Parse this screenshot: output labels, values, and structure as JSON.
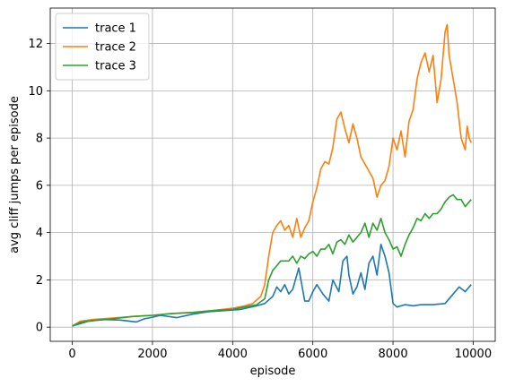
{
  "chart_data": {
    "type": "line",
    "xlabel": "episode",
    "ylabel": "avg cliff jumps per episode",
    "xlim": [
      -550,
      10550
    ],
    "ylim": [
      -0.6,
      13.5
    ],
    "xticks": [
      0,
      2000,
      4000,
      6000,
      8000,
      10000
    ],
    "yticks": [
      0,
      2,
      4,
      6,
      8,
      10,
      12
    ],
    "grid": true,
    "legend_position": "top-left",
    "series": [
      {
        "name": "trace 1",
        "color": "#1f77b4",
        "points": [
          [
            0,
            0.05
          ],
          [
            200,
            0.15
          ],
          [
            400,
            0.25
          ],
          [
            800,
            0.32
          ],
          [
            1200,
            0.3
          ],
          [
            1600,
            0.22
          ],
          [
            1800,
            0.35
          ],
          [
            2000,
            0.42
          ],
          [
            2200,
            0.5
          ],
          [
            2600,
            0.4
          ],
          [
            3000,
            0.55
          ],
          [
            3400,
            0.65
          ],
          [
            3800,
            0.7
          ],
          [
            4200,
            0.75
          ],
          [
            4600,
            0.9
          ],
          [
            4800,
            1.0
          ],
          [
            5000,
            1.3
          ],
          [
            5100,
            1.7
          ],
          [
            5200,
            1.5
          ],
          [
            5300,
            1.8
          ],
          [
            5400,
            1.4
          ],
          [
            5500,
            1.6
          ],
          [
            5650,
            2.5
          ],
          [
            5800,
            1.1
          ],
          [
            5900,
            1.1
          ],
          [
            6000,
            1.5
          ],
          [
            6100,
            1.8
          ],
          [
            6250,
            1.4
          ],
          [
            6400,
            1.1
          ],
          [
            6500,
            2.0
          ],
          [
            6650,
            1.5
          ],
          [
            6750,
            2.8
          ],
          [
            6850,
            3.0
          ],
          [
            6900,
            2.2
          ],
          [
            7000,
            1.4
          ],
          [
            7100,
            1.7
          ],
          [
            7200,
            2.3
          ],
          [
            7300,
            1.6
          ],
          [
            7400,
            2.7
          ],
          [
            7500,
            3.0
          ],
          [
            7600,
            2.2
          ],
          [
            7700,
            3.5
          ],
          [
            7800,
            3.0
          ],
          [
            7900,
            2.3
          ],
          [
            8000,
            1.0
          ],
          [
            8100,
            0.85
          ],
          [
            8300,
            0.95
          ],
          [
            8500,
            0.9
          ],
          [
            8700,
            0.95
          ],
          [
            9000,
            0.95
          ],
          [
            9300,
            1.0
          ],
          [
            9500,
            1.4
          ],
          [
            9650,
            1.7
          ],
          [
            9800,
            1.5
          ],
          [
            9950,
            1.8
          ]
        ]
      },
      {
        "name": "trace 2",
        "color": "#ff7f0e",
        "points": [
          [
            0,
            0.05
          ],
          [
            200,
            0.25
          ],
          [
            500,
            0.32
          ],
          [
            1000,
            0.38
          ],
          [
            1500,
            0.45
          ],
          [
            2000,
            0.5
          ],
          [
            2500,
            0.58
          ],
          [
            3000,
            0.62
          ],
          [
            3500,
            0.7
          ],
          [
            4000,
            0.8
          ],
          [
            4300,
            0.9
          ],
          [
            4500,
            1.0
          ],
          [
            4700,
            1.3
          ],
          [
            4800,
            1.8
          ],
          [
            4900,
            3.0
          ],
          [
            5000,
            4.0
          ],
          [
            5100,
            4.3
          ],
          [
            5200,
            4.5
          ],
          [
            5300,
            4.1
          ],
          [
            5400,
            4.3
          ],
          [
            5500,
            3.8
          ],
          [
            5600,
            4.6
          ],
          [
            5700,
            3.8
          ],
          [
            5800,
            4.2
          ],
          [
            5900,
            4.5
          ],
          [
            6000,
            5.3
          ],
          [
            6100,
            5.9
          ],
          [
            6200,
            6.7
          ],
          [
            6300,
            7.0
          ],
          [
            6400,
            6.9
          ],
          [
            6500,
            7.6
          ],
          [
            6600,
            8.8
          ],
          [
            6700,
            9.1
          ],
          [
            6800,
            8.4
          ],
          [
            6900,
            7.8
          ],
          [
            7000,
            8.6
          ],
          [
            7100,
            8.0
          ],
          [
            7200,
            7.2
          ],
          [
            7300,
            6.9
          ],
          [
            7400,
            6.6
          ],
          [
            7500,
            6.3
          ],
          [
            7600,
            5.5
          ],
          [
            7700,
            6.0
          ],
          [
            7800,
            6.2
          ],
          [
            7900,
            6.8
          ],
          [
            8000,
            8.0
          ],
          [
            8100,
            7.5
          ],
          [
            8200,
            8.3
          ],
          [
            8300,
            7.2
          ],
          [
            8400,
            8.7
          ],
          [
            8500,
            9.2
          ],
          [
            8600,
            10.5
          ],
          [
            8700,
            11.2
          ],
          [
            8800,
            11.6
          ],
          [
            8900,
            10.8
          ],
          [
            9000,
            11.5
          ],
          [
            9100,
            9.5
          ],
          [
            9200,
            10.5
          ],
          [
            9300,
            12.5
          ],
          [
            9350,
            12.8
          ],
          [
            9400,
            11.5
          ],
          [
            9500,
            10.5
          ],
          [
            9600,
            9.5
          ],
          [
            9700,
            8.0
          ],
          [
            9800,
            7.5
          ],
          [
            9850,
            8.5
          ],
          [
            9900,
            8.0
          ],
          [
            9950,
            7.8
          ]
        ]
      },
      {
        "name": "trace 3",
        "color": "#2ca02c",
        "points": [
          [
            0,
            0.05
          ],
          [
            200,
            0.2
          ],
          [
            500,
            0.28
          ],
          [
            1000,
            0.35
          ],
          [
            1500,
            0.45
          ],
          [
            2000,
            0.5
          ],
          [
            2500,
            0.58
          ],
          [
            3000,
            0.62
          ],
          [
            3500,
            0.7
          ],
          [
            4000,
            0.75
          ],
          [
            4300,
            0.85
          ],
          [
            4600,
            0.95
          ],
          [
            4800,
            1.2
          ],
          [
            4900,
            2.0
          ],
          [
            5000,
            2.4
          ],
          [
            5100,
            2.6
          ],
          [
            5200,
            2.8
          ],
          [
            5400,
            2.8
          ],
          [
            5500,
            3.0
          ],
          [
            5600,
            2.7
          ],
          [
            5700,
            3.0
          ],
          [
            5800,
            2.9
          ],
          [
            5900,
            3.1
          ],
          [
            6000,
            3.2
          ],
          [
            6100,
            3.0
          ],
          [
            6200,
            3.3
          ],
          [
            6300,
            3.3
          ],
          [
            6400,
            3.5
          ],
          [
            6500,
            3.1
          ],
          [
            6600,
            3.6
          ],
          [
            6700,
            3.7
          ],
          [
            6800,
            3.5
          ],
          [
            6900,
            3.9
          ],
          [
            7000,
            3.6
          ],
          [
            7100,
            3.8
          ],
          [
            7200,
            4.0
          ],
          [
            7300,
            4.4
          ],
          [
            7400,
            3.8
          ],
          [
            7500,
            4.4
          ],
          [
            7600,
            4.1
          ],
          [
            7700,
            4.6
          ],
          [
            7800,
            4.0
          ],
          [
            7900,
            3.7
          ],
          [
            8000,
            3.3
          ],
          [
            8100,
            3.4
          ],
          [
            8200,
            3.0
          ],
          [
            8300,
            3.5
          ],
          [
            8400,
            3.9
          ],
          [
            8500,
            4.2
          ],
          [
            8600,
            4.6
          ],
          [
            8700,
            4.5
          ],
          [
            8800,
            4.8
          ],
          [
            8900,
            4.6
          ],
          [
            9000,
            4.8
          ],
          [
            9100,
            4.8
          ],
          [
            9200,
            5.0
          ],
          [
            9300,
            5.3
          ],
          [
            9400,
            5.5
          ],
          [
            9500,
            5.6
          ],
          [
            9600,
            5.4
          ],
          [
            9700,
            5.4
          ],
          [
            9800,
            5.1
          ],
          [
            9900,
            5.3
          ],
          [
            9950,
            5.4
          ]
        ]
      }
    ]
  }
}
